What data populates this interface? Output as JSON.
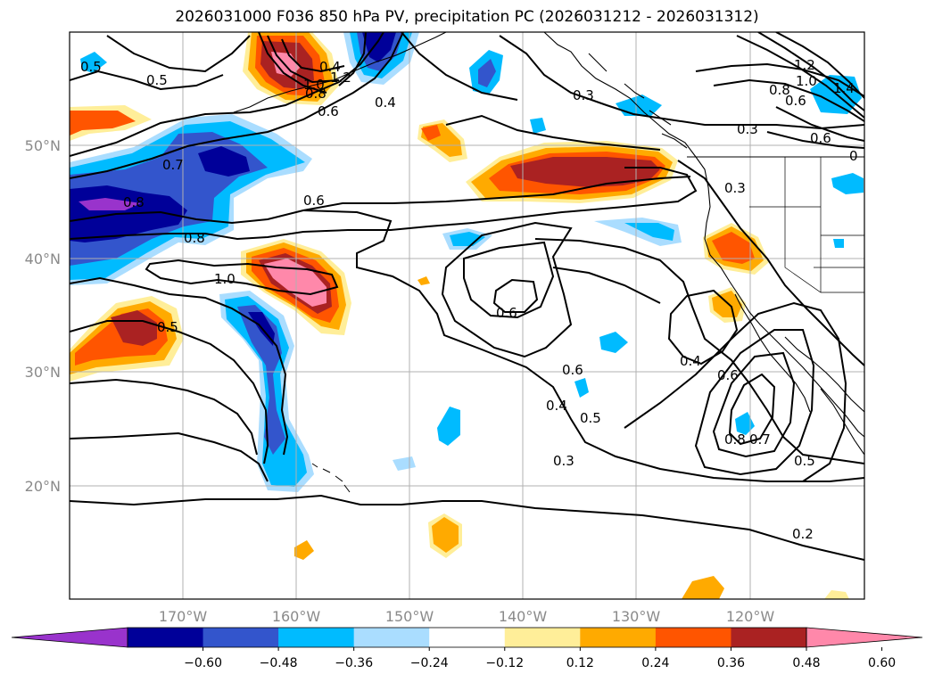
{
  "title": "2026031000 F036 850 hPa PV, precipitation PC (2026031212 - 2026031312)",
  "lat_labels": [
    "50°N",
    "40°N",
    "30°N",
    "20°N"
  ],
  "lon_labels": [
    "170°W",
    "160°W",
    "150°W",
    "140°W",
    "130°W",
    "120°W"
  ],
  "colorbar": {
    "ticks": [
      "−0.60",
      "−0.48",
      "−0.36",
      "−0.24",
      "−0.12",
      "0.12",
      "0.24",
      "0.36",
      "0.48",
      "0.60"
    ],
    "colors": [
      "#9933cc",
      "#000099",
      "#3355cc",
      "#00bbff",
      "#aaddff",
      "#ffffff",
      "#ffee99",
      "#ffaa00",
      "#ff5500",
      "#aa2222",
      "#ff88aa"
    ]
  },
  "contour_labels": [
    "0.5",
    "0.5",
    "0.7",
    "0.8",
    "1.0",
    "0.8",
    "0.6",
    "0.5",
    "0.6",
    "0.6",
    "0.4",
    "0.5",
    "0.3",
    "0.4",
    "0.6",
    "0.8",
    "0.7",
    "0.5",
    "0.2",
    "0.3",
    "0.3",
    "0.3",
    "1.2",
    "1.0",
    "0.8",
    "0.6",
    "0.4",
    "0.4",
    "0.8",
    "0.6",
    "1.0",
    "1.2",
    "1.4",
    "0.6",
    "0"
  ]
}
